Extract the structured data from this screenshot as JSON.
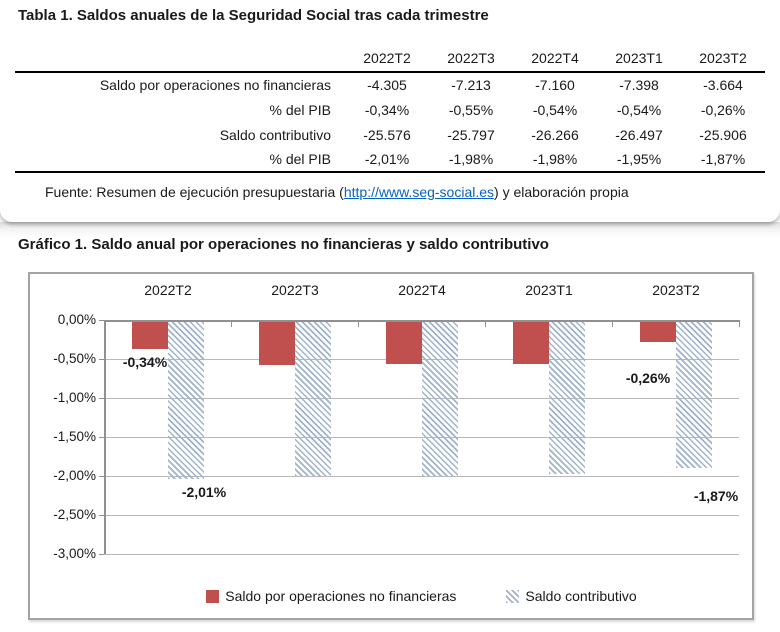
{
  "table_section": {
    "title": "Tabla 1. Saldos anuales de la Seguridad Social tras cada trimestre",
    "columns": [
      "2022T2",
      "2022T3",
      "2022T4",
      "2023T1",
      "2023T2"
    ],
    "rows": [
      {
        "label": "Saldo por operaciones no financieras",
        "values": [
          "-4.305",
          "-7.213",
          "-7.160",
          "-7.398",
          "-3.664"
        ]
      },
      {
        "label": "% del PIB",
        "values": [
          "-0,34%",
          "-0,55%",
          "-0,54%",
          "-0,54%",
          "-0,26%"
        ]
      },
      {
        "label": "Saldo contributivo",
        "values": [
          "-25.576",
          "-25.797",
          "-26.266",
          "-26.497",
          "-25.906"
        ]
      },
      {
        "label": "% del PIB",
        "values": [
          "-2,01%",
          "-1,98%",
          "-1,98%",
          "-1,95%",
          "-1,87%"
        ]
      }
    ],
    "source": {
      "prefix": "Fuente: Resumen de ejecución presupuestaria (",
      "link": "http://www.seg-social.es",
      "suffix": ") y elaboración propia"
    }
  },
  "chart_section": {
    "title": "Gráfico 1. Saldo anual por operaciones no financieras y saldo contributivo"
  },
  "chart_data": {
    "type": "bar",
    "categories": [
      "2022T2",
      "2022T3",
      "2022T4",
      "2023T1",
      "2023T2"
    ],
    "series": [
      {
        "name": "Saldo por operaciones no financieras",
        "values": [
          -0.34,
          -0.55,
          -0.54,
          -0.54,
          -0.26
        ],
        "color": "#c0504d",
        "fill": "solid"
      },
      {
        "name": "Saldo contributivo",
        "values": [
          -2.01,
          -1.98,
          -1.98,
          -1.95,
          -1.87
        ],
        "color": "#9fb4ca",
        "fill": "diagonal-hatch"
      }
    ],
    "data_labels": [
      {
        "text": "-0,34%",
        "category": "2022T2",
        "series": 0
      },
      {
        "text": "-2,01%",
        "category": "2022T2",
        "series": 1
      },
      {
        "text": "-0,26%",
        "category": "2023T2",
        "series": 0
      },
      {
        "text": "-1,87%",
        "category": "2023T2",
        "series": 1
      }
    ],
    "y_ticks": [
      "0,00%",
      "-0,50%",
      "-1,00%",
      "-1,50%",
      "-2,00%",
      "-2,50%",
      "-3,00%"
    ],
    "ylim": [
      -3,
      0
    ],
    "grid": true,
    "legend_position": "bottom"
  }
}
